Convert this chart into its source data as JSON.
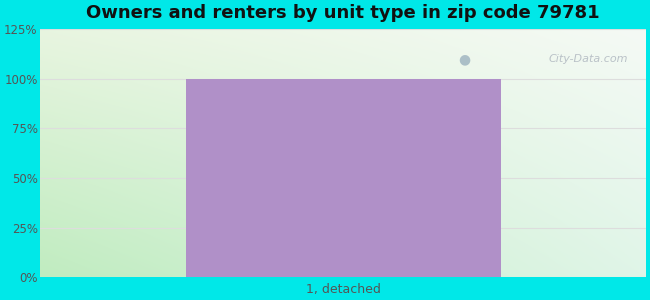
{
  "title": "Owners and renters by unit type in zip code 79781",
  "categories": [
    "1, detached"
  ],
  "values": [
    100
  ],
  "bar_color": "#b090c8",
  "ylim": [
    0,
    125
  ],
  "yticks": [
    0,
    25,
    50,
    75,
    100,
    125
  ],
  "ytick_labels": [
    "0%",
    "25%",
    "50%",
    "75%",
    "100%",
    "125%"
  ],
  "background_color": "#00e8e8",
  "grad_top_left": "#e8f5e0",
  "grad_top_right": "#f5faf5",
  "grad_bot_left": "#c0ecc0",
  "grad_bot_right": "#e0f5e8",
  "title_fontsize": 13,
  "tick_fontsize": 8.5,
  "xlabel_fontsize": 9,
  "watermark_text": "City-Data.com",
  "grid_color": "#dddddd",
  "title_color": "#111111"
}
